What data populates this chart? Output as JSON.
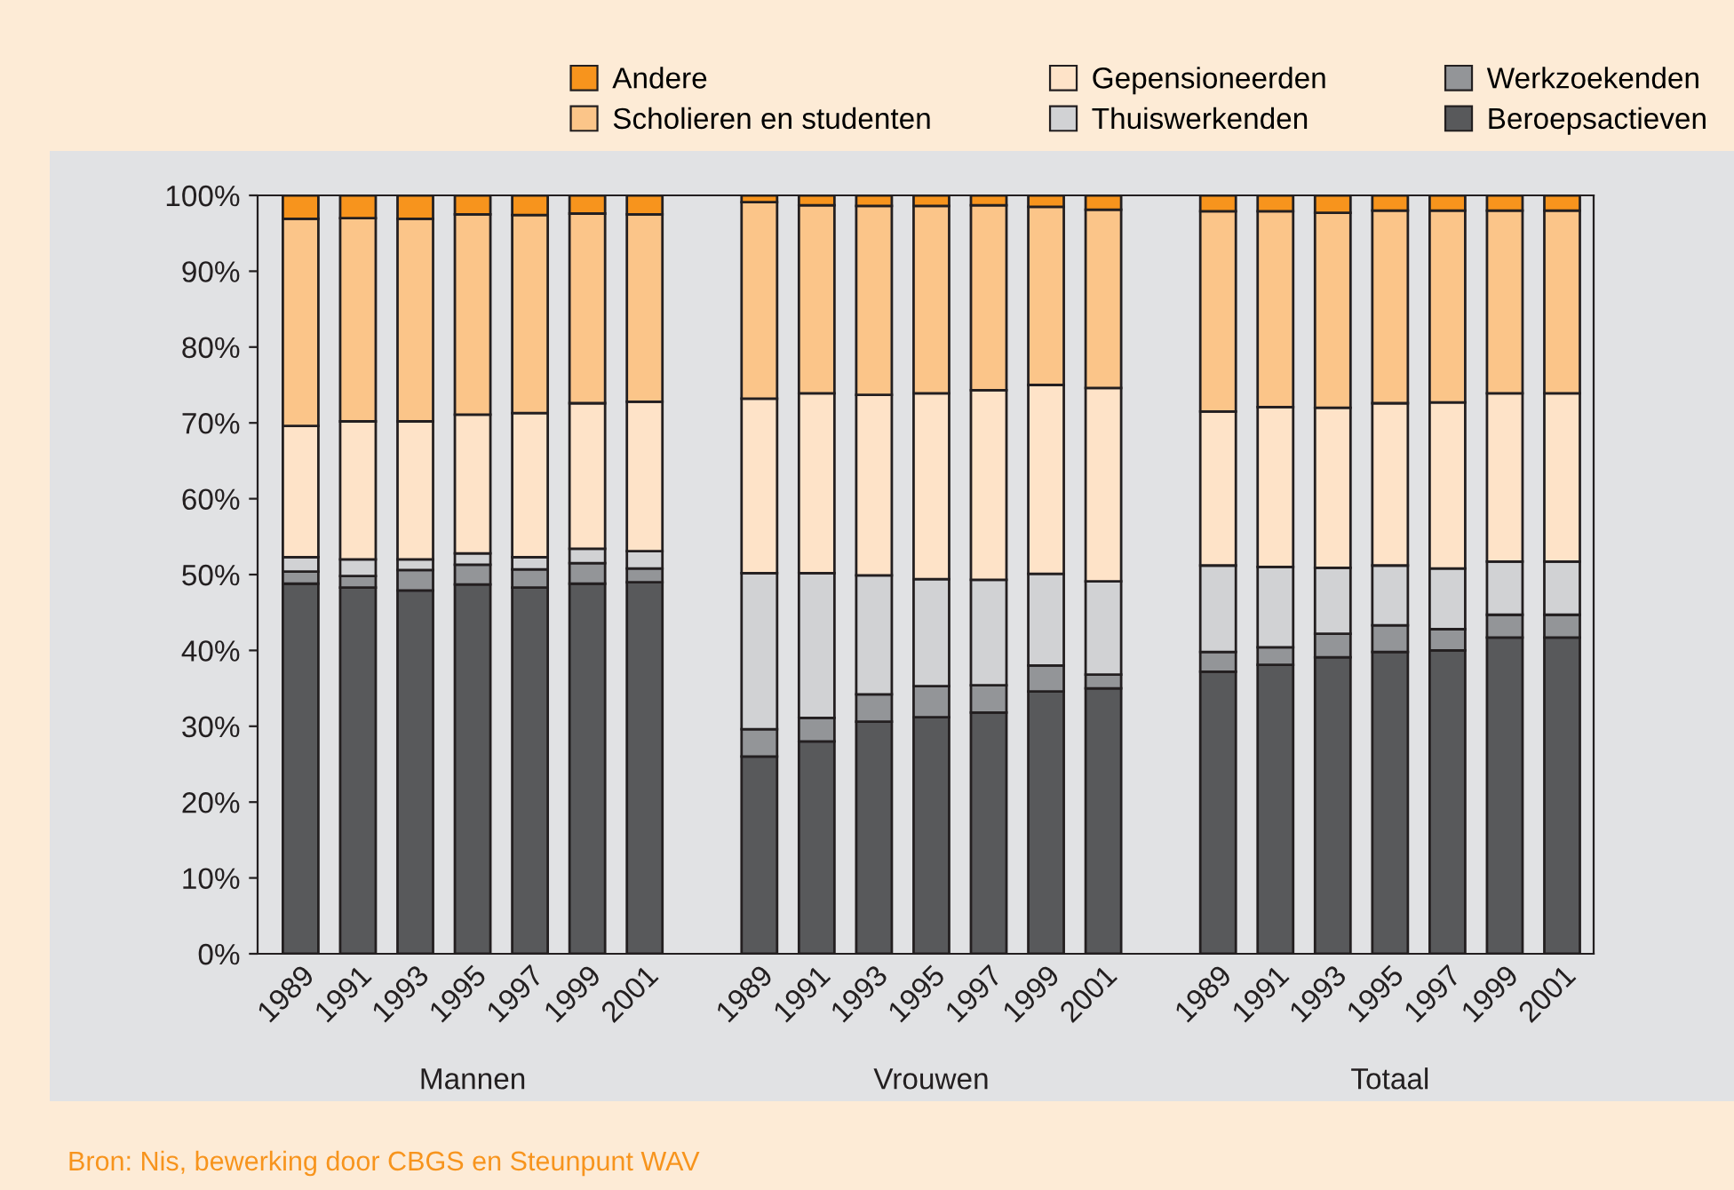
{
  "chart_data": {
    "type": "bar",
    "stacked": true,
    "categories": [
      "1989",
      "1991",
      "1993",
      "1995",
      "1997",
      "1999",
      "2001",
      null,
      "1989",
      "1991",
      "1993",
      "1995",
      "1997",
      "1999",
      "2001",
      null,
      "1989",
      "1991",
      "1993",
      "1995",
      "1997",
      "1999",
      "2001"
    ],
    "series": [
      {
        "name": "Beroepsactieven",
        "color": "#58595b",
        "values": [
          48.8,
          48.3,
          47.9,
          48.7,
          48.3,
          48.8,
          49.0,
          null,
          26.0,
          28.0,
          30.6,
          31.2,
          31.8,
          34.6,
          35.0,
          null,
          37.2,
          38.1,
          39.1,
          39.8,
          40.0,
          41.7,
          41.7
        ]
      },
      {
        "name": "Werkzoekenden",
        "color": "#939598",
        "values": [
          1.6,
          1.5,
          2.7,
          2.6,
          2.4,
          2.7,
          1.8,
          null,
          3.6,
          3.1,
          3.6,
          4.1,
          3.6,
          3.4,
          1.8,
          null,
          2.6,
          2.3,
          3.1,
          3.5,
          2.8,
          3.0,
          3.0
        ]
      },
      {
        "name": "Thuiswerkenden",
        "color": "#d1d2d4",
        "values": [
          1.9,
          2.2,
          1.4,
          1.5,
          1.6,
          1.9,
          2.3,
          null,
          20.6,
          19.1,
          15.7,
          14.1,
          13.9,
          12.1,
          12.3,
          null,
          11.4,
          10.6,
          8.7,
          7.9,
          8.0,
          7.0,
          7.0
        ]
      },
      {
        "name": "Gepensioneerden",
        "color": "#fee3c8",
        "values": [
          17.3,
          18.2,
          18.2,
          18.3,
          19.0,
          19.2,
          19.7,
          null,
          23.0,
          23.7,
          23.8,
          24.5,
          25.0,
          24.9,
          25.5,
          null,
          20.3,
          21.1,
          21.1,
          21.4,
          21.9,
          22.2,
          22.2
        ]
      },
      {
        "name": "Scholieren en studenten",
        "color": "#fbc589",
        "values": [
          27.3,
          26.8,
          26.7,
          26.4,
          26.1,
          25.0,
          24.7,
          null,
          25.9,
          24.8,
          24.9,
          24.7,
          24.4,
          23.5,
          23.5,
          null,
          26.4,
          25.8,
          25.7,
          25.4,
          25.3,
          24.1,
          24.1
        ]
      },
      {
        "name": "Andere",
        "color": "#f7941d",
        "values": [
          3.1,
          3.0,
          3.1,
          2.5,
          2.6,
          2.4,
          2.5,
          null,
          0.9,
          1.3,
          1.4,
          1.4,
          1.3,
          1.5,
          1.9,
          null,
          2.1,
          2.1,
          2.3,
          2.0,
          2.0,
          2.0,
          2.0
        ]
      }
    ],
    "ylim": [
      0,
      100
    ],
    "yticks": [
      {
        "value": 0,
        "label": "0%"
      },
      {
        "value": 10,
        "label": "10%"
      },
      {
        "value": 20,
        "label": "20%"
      },
      {
        "value": 30,
        "label": "30%"
      },
      {
        "value": 40,
        "label": "40%"
      },
      {
        "value": 50,
        "label": "50%"
      },
      {
        "value": 60,
        "label": "60%"
      },
      {
        "value": 70,
        "label": "70%"
      },
      {
        "value": 80,
        "label": "80%"
      },
      {
        "value": 90,
        "label": "90%"
      },
      {
        "value": 100,
        "label": "100%"
      }
    ],
    "grid": false,
    "legend": "top",
    "annotations": [
      "Mannen",
      "Vrouwen",
      "Totaal",
      "Bron: Nis, bewerking door CBGS en Steunpunt WAV"
    ]
  }
}
